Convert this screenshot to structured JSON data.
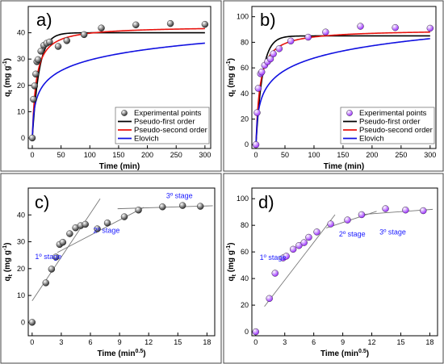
{
  "chart_data": [
    {
      "panel_label": "a)",
      "type": "scatter",
      "xlabel": "Time (min)",
      "ylabel": "q",
      "ylabel_sub": "t",
      "ylabel_unit": " (mg g",
      "ylabel_sup": "-1",
      "ylabel_close": ")",
      "xlim": [
        -7,
        310
      ],
      "ylim": [
        -4,
        50
      ],
      "xticks": [
        0,
        50,
        100,
        150,
        200,
        250,
        300
      ],
      "yticks": [
        0,
        10,
        20,
        30,
        40
      ],
      "legend": "bottom-right",
      "marker_color": "#2f2f2f",
      "points": {
        "name": "Experimental points",
        "x": [
          0,
          2,
          4,
          6,
          8,
          10,
          15,
          20,
          25,
          30,
          45,
          60,
          90,
          120,
          180,
          240,
          300
        ],
        "y": [
          0,
          14.7,
          19.8,
          24.3,
          29.0,
          29.8,
          33.0,
          35.2,
          36.0,
          36.5,
          34.8,
          37.0,
          39.3,
          41.8,
          43.0,
          43.5,
          43.2
        ]
      },
      "models": [
        {
          "name": "Pseudo-first order",
          "color": "#000000",
          "kind": "pfo",
          "qe": 40.0,
          "k": 0.085
        },
        {
          "name": "Pseudo-second order",
          "color": "#e8130e",
          "kind": "pso",
          "qe": 42.5,
          "k": 0.0035
        },
        {
          "name": "Elovich",
          "color": "#1010e0",
          "kind": "elovich",
          "a": 9.0,
          "b": 0.17
        }
      ]
    },
    {
      "panel_label": "b)",
      "type": "scatter",
      "xlabel": "Time (min)",
      "ylabel": "q",
      "ylabel_sub": "t",
      "ylabel_unit": " (mg g",
      "ylabel_sup": "-1",
      "ylabel_close": ")",
      "xlim": [
        -7,
        310
      ],
      "ylim": [
        -3,
        108
      ],
      "xticks": [
        0,
        50,
        100,
        150,
        200,
        250,
        300
      ],
      "yticks": [
        0,
        20,
        40,
        60,
        80,
        100
      ],
      "legend": "bottom-right",
      "marker_color": "#9b30ff",
      "points": {
        "name": "Experimental points",
        "x": [
          0,
          2,
          4,
          8,
          10,
          15,
          20,
          25,
          30,
          40,
          60,
          90,
          120,
          180,
          240,
          300
        ],
        "y": [
          0,
          25.0,
          44.0,
          55.5,
          56.8,
          62.0,
          64.8,
          67.0,
          71.0,
          75.0,
          81.0,
          84.0,
          88.0,
          92.5,
          91.5,
          91.0
        ]
      },
      "models": [
        {
          "name": "Pseudo-first order",
          "color": "#000000",
          "kind": "pfo",
          "qe": 85.0,
          "k": 0.09
        },
        {
          "name": "Pseudo-second order",
          "color": "#e8130e",
          "kind": "pso",
          "qe": 90.0,
          "k": 0.0016
        },
        {
          "name": "Elovich",
          "color": "#1010e0",
          "kind": "elovich",
          "a": 18.0,
          "b": 0.072
        }
      ]
    },
    {
      "panel_label": "c)",
      "type": "scatter",
      "xlabel": "Time (min",
      "xlabel_sup": "0.5",
      "xlabel_close": ")",
      "ylabel": "q",
      "ylabel_sub": "t",
      "ylabel_unit": " (mg g",
      "ylabel_sup": "-1",
      "ylabel_close": ")",
      "xlim": [
        -0.4,
        18.8
      ],
      "ylim": [
        -5,
        50
      ],
      "xticks": [
        0,
        3,
        6,
        9,
        12,
        15,
        18
      ],
      "yticks": [
        0,
        10,
        20,
        30,
        40
      ],
      "marker_color": "#2f2f2f",
      "points": {
        "x": [
          0,
          1.41,
          2.0,
          2.45,
          2.83,
          3.16,
          3.87,
          4.47,
          5.0,
          5.48,
          6.71,
          7.75,
          9.49,
          10.95,
          13.42,
          15.49,
          17.32
        ],
        "y": [
          0,
          14.7,
          19.8,
          24.3,
          29.0,
          29.8,
          33.0,
          35.2,
          36.0,
          36.5,
          34.8,
          37.0,
          39.3,
          41.8,
          43.0,
          43.5,
          43.2
        ]
      },
      "fit_lines": [
        {
          "x": [
            0,
            7.0
          ],
          "y": [
            8.0,
            46.0
          ]
        },
        {
          "x": [
            2.6,
            11.5
          ],
          "y": [
            26.0,
            42.8
          ]
        },
        {
          "x": [
            8.8,
            18.6
          ],
          "y": [
            42.3,
            43.4
          ]
        }
      ],
      "annotations": [
        {
          "text": "1º stage",
          "x": 0.3,
          "y": 23.5
        },
        {
          "text": "2º stage",
          "x": 6.3,
          "y": 33.3
        },
        {
          "text": "3º stage",
          "x": 13.8,
          "y": 46.2
        }
      ]
    },
    {
      "panel_label": "d)",
      "type": "scatter",
      "xlabel": "Time (min",
      "xlabel_sup": "0.5",
      "xlabel_close": ")",
      "ylabel": "q",
      "ylabel_sub": "t",
      "ylabel_unit": " (mg g",
      "ylabel_sup": "-1",
      "ylabel_close": ")",
      "xlim": [
        -0.4,
        18.8
      ],
      "ylim": [
        -3,
        108
      ],
      "xticks": [
        0,
        3,
        6,
        9,
        12,
        15,
        18
      ],
      "yticks": [
        0,
        20,
        40,
        60,
        80,
        100
      ],
      "marker_color": "#9b30ff",
      "points": {
        "x": [
          0,
          1.41,
          2.0,
          2.83,
          3.16,
          3.87,
          4.47,
          5.0,
          5.48,
          6.32,
          7.75,
          9.49,
          10.95,
          13.42,
          15.49,
          17.32
        ],
        "y": [
          0,
          25.0,
          44.0,
          55.5,
          56.8,
          62.0,
          64.8,
          67.0,
          71.0,
          75.0,
          81.0,
          84.0,
          88.0,
          92.5,
          91.5,
          91.0
        ]
      },
      "fit_lines": [
        {
          "x": [
            0.9,
            8.2
          ],
          "y": [
            19.0,
            88.0
          ]
        },
        {
          "x": [
            7.3,
            12.5
          ],
          "y": [
            78.0,
            90.5
          ]
        },
        {
          "x": [
            10.8,
            18.3
          ],
          "y": [
            88.0,
            92.0
          ]
        }
      ],
      "annotations": [
        {
          "text": "1º stage",
          "x": 0.4,
          "y": 54.0
        },
        {
          "text": "2º stage",
          "x": 8.6,
          "y": 71.5
        },
        {
          "text": "3º stage",
          "x": 12.8,
          "y": 73.0
        }
      ]
    }
  ]
}
